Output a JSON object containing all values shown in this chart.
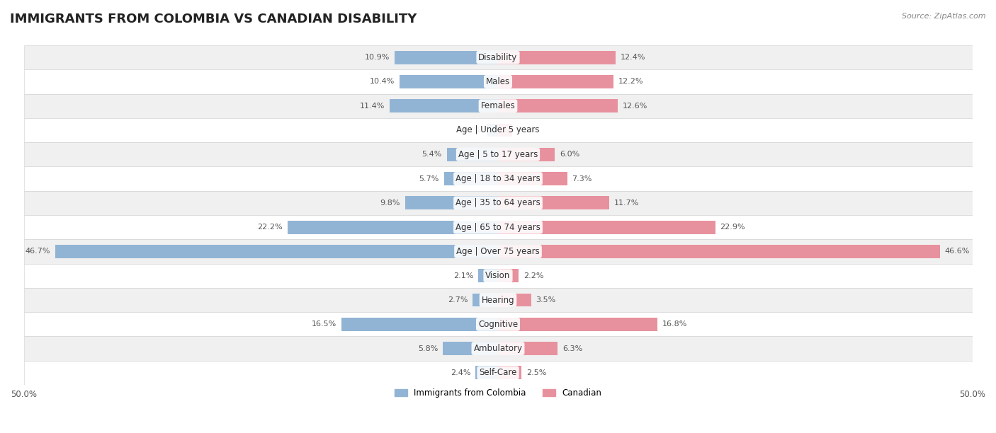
{
  "title": "IMMIGRANTS FROM COLOMBIA VS CANADIAN DISABILITY",
  "source": "Source: ZipAtlas.com",
  "categories": [
    "Disability",
    "Males",
    "Females",
    "Age | Under 5 years",
    "Age | 5 to 17 years",
    "Age | 18 to 34 years",
    "Age | 35 to 64 years",
    "Age | 65 to 74 years",
    "Age | Over 75 years",
    "Vision",
    "Hearing",
    "Cognitive",
    "Ambulatory",
    "Self-Care"
  ],
  "left_values": [
    10.9,
    10.4,
    11.4,
    1.2,
    5.4,
    5.7,
    9.8,
    22.2,
    46.7,
    2.1,
    2.7,
    16.5,
    5.8,
    2.4
  ],
  "right_values": [
    12.4,
    12.2,
    12.6,
    1.5,
    6.0,
    7.3,
    11.7,
    22.9,
    46.6,
    2.2,
    3.5,
    16.8,
    6.3,
    2.5
  ],
  "left_color": "#92b4d4",
  "right_color": "#e8919e",
  "left_label": "Immigrants from Colombia",
  "right_label": "Canadian",
  "x_max": 50.0,
  "row_bg_colors": [
    "#f0f0f0",
    "#ffffff"
  ],
  "bar_height": 0.55,
  "title_fontsize": 13,
  "label_fontsize": 8.5,
  "value_fontsize": 8,
  "axis_label_fontsize": 8.5
}
